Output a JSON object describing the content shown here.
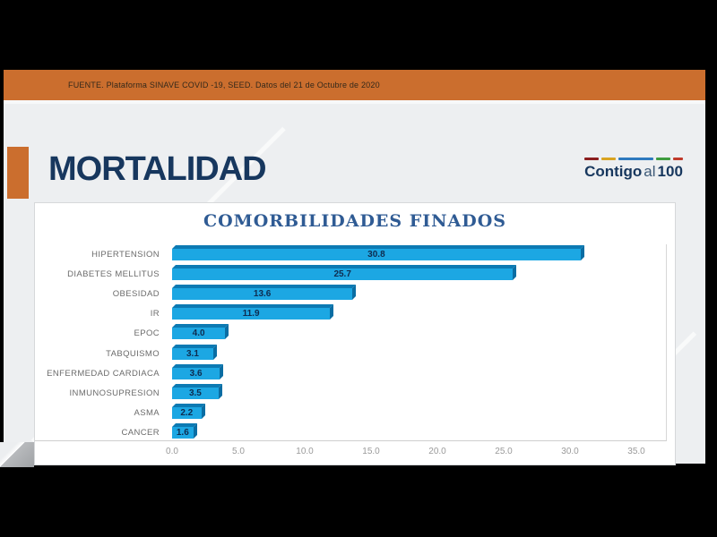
{
  "banner": {
    "source_text": "FUENTE. Plataforma SINAVE COVID -19, SEED. Datos del 21 de Octubre de 2020"
  },
  "header": {
    "title": "MORTALIDAD",
    "logo": {
      "part_bold_1": "Contigo",
      "part_regular": "al",
      "part_bold_2": "100"
    }
  },
  "chart_data": {
    "type": "bar",
    "orientation": "horizontal",
    "title": "COMORBILIDADES FINADOS",
    "categories": [
      "HIPERTENSION",
      "DIABETES MELLITUS",
      "OBESIDAD",
      "IR",
      "EPOC",
      "TABQUISMO",
      "ENFERMEDAD CARDIACA",
      "INMUNOSUPRESION",
      "ASMA",
      "CANCER"
    ],
    "values": [
      30.8,
      25.7,
      13.6,
      11.9,
      4.0,
      3.1,
      3.6,
      3.5,
      2.2,
      1.6
    ],
    "value_labels": [
      "30.8",
      "25.7",
      "13.6",
      "11.9",
      "4.0",
      "3.1",
      "3.6",
      "3.5",
      "2.2",
      "1.6"
    ],
    "x_ticks": [
      0,
      5,
      10,
      15,
      20,
      25,
      30,
      35
    ],
    "x_tick_labels": [
      "0.0",
      "5.0",
      "10.0",
      "15.0",
      "20.0",
      "25.0",
      "30.0",
      "35.0"
    ],
    "xlim": [
      0,
      35
    ],
    "grid": false,
    "legend": false,
    "bar_color": "#1CA7E3",
    "bar_top_color": "#0C7AB3",
    "bar_side_color": "#0A6DA3",
    "value_label_color": "#0e2c4f"
  },
  "colors": {
    "letterbox": "#000000",
    "accent_orange": "#CB6E2E",
    "title_navy": "#17375E",
    "chart_title_blue": "#2F5B94",
    "slide_background": "#edeff1"
  }
}
